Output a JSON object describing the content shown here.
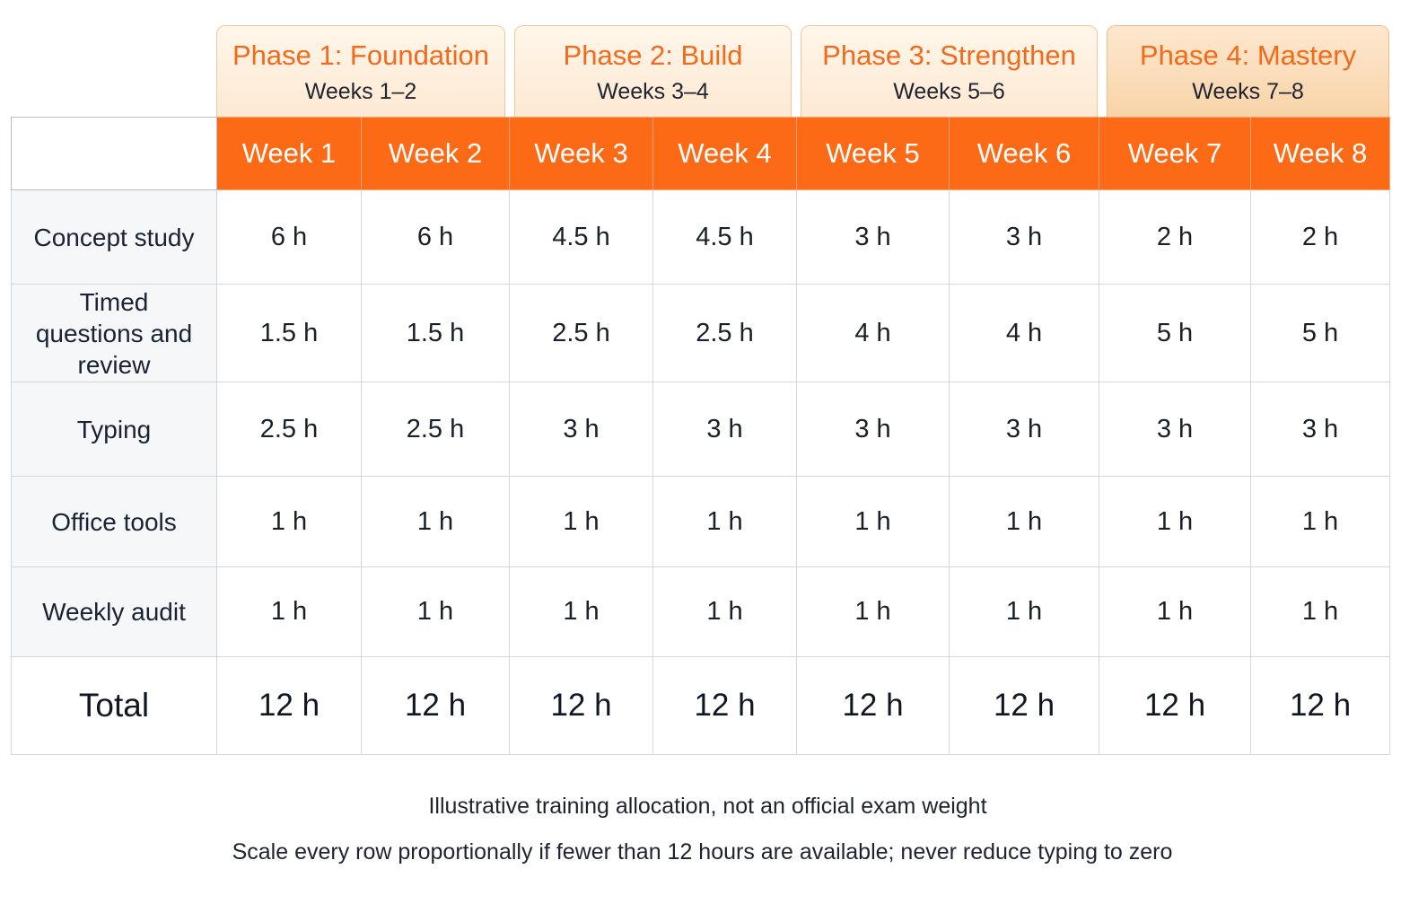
{
  "phases": [
    {
      "title": "Phase 1: Foundation",
      "weeks": "Weeks 1–2"
    },
    {
      "title": "Phase 2: Build",
      "weeks": "Weeks 3–4"
    },
    {
      "title": "Phase 3: Strengthen",
      "weeks": "Weeks 5–6"
    },
    {
      "title": "Phase 4: Mastery",
      "weeks": "Weeks 7–8"
    }
  ],
  "table": {
    "columns": [
      "Week 1",
      "Week 2",
      "Week 3",
      "Week 4",
      "Week 5",
      "Week 6",
      "Week 7",
      "Week 8"
    ],
    "rows": [
      {
        "label": "Concept study",
        "values": [
          "6 h",
          "6 h",
          "4.5 h",
          "4.5 h",
          "3 h",
          "3 h",
          "2 h",
          "2 h"
        ]
      },
      {
        "label": "Timed questions and review",
        "values": [
          "1.5 h",
          "1.5 h",
          "2.5 h",
          "2.5 h",
          "4 h",
          "4 h",
          "5 h",
          "5 h"
        ]
      },
      {
        "label": "Typing",
        "values": [
          "2.5 h",
          "2.5 h",
          "3 h",
          "3 h",
          "3 h",
          "3 h",
          "3 h",
          "3 h"
        ]
      },
      {
        "label": "Office tools",
        "values": [
          "1 h",
          "1 h",
          "1 h",
          "1 h",
          "1 h",
          "1 h",
          "1 h",
          "1 h"
        ]
      },
      {
        "label": "Weekly audit",
        "values": [
          "1 h",
          "1 h",
          "1 h",
          "1 h",
          "1 h",
          "1 h",
          "1 h",
          "1 h"
        ]
      }
    ],
    "total": {
      "label": "Total",
      "values": [
        "12 h",
        "12 h",
        "12 h",
        "12 h",
        "12 h",
        "12 h",
        "12 h",
        "12 h"
      ]
    }
  },
  "notes": [
    "Illustrative training allocation, not an official exam weight",
    "Scale every row proportionally if fewer than 12 hours are available; never reduce typing to zero"
  ],
  "colors": {
    "accent_orange": "#fd6a16",
    "phase_title": "#f26a1b",
    "phase_background": "#fde9d2",
    "row_label_background": "#f6f7f9",
    "grid_lines": "#d3d6da"
  }
}
